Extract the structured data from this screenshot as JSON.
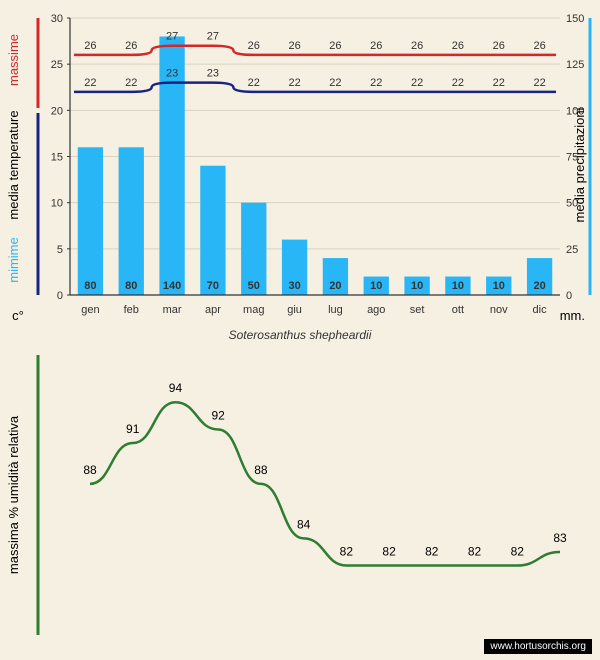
{
  "subtitle": "Soterosanthus shepheardii",
  "footer": "www.hortusorchis.org",
  "months": [
    "gen",
    "feb",
    "mar",
    "apr",
    "mag",
    "giu",
    "lug",
    "ago",
    "set",
    "ott",
    "nov",
    "dic"
  ],
  "top_chart": {
    "type": "combo-bar-line",
    "background": "#f5f0e1",
    "plot_border": "#333333",
    "left_axis": {
      "label": "media temperature",
      "unit": "c°",
      "min": 0,
      "max": 30,
      "step": 5,
      "color": "#1a237e",
      "label_color": "#000000"
    },
    "right_axis": {
      "label": "media precipitazioni",
      "unit": "mm.",
      "min": 0,
      "max": 150,
      "step": 25,
      "color": "#29b6f6",
      "label_color": "#000000"
    },
    "legend_labels": {
      "max": "massime",
      "min": "mimime"
    },
    "grid_color": "#d8d2c0",
    "bar": {
      "color": "#29b6f6",
      "values": [
        80,
        80,
        140,
        70,
        50,
        30,
        20,
        10,
        10,
        10,
        10,
        20
      ],
      "width": 0.62
    },
    "line_max": {
      "color": "#d62728",
      "width": 2.5,
      "values": [
        26,
        26,
        27,
        27,
        26,
        26,
        26,
        26,
        26,
        26,
        26,
        26
      ]
    },
    "line_min": {
      "color": "#1a237e",
      "width": 2.5,
      "values": [
        22,
        22,
        23,
        23,
        22,
        22,
        22,
        22,
        22,
        22,
        22,
        22
      ]
    },
    "label_fontsize": 11
  },
  "bottom_chart": {
    "type": "line",
    "background": "#f5f0e1",
    "axis_label": "massima % umidità relativa",
    "axis_color": "#2e7d32",
    "line": {
      "color": "#2e7d32",
      "width": 2.5,
      "values": [
        88,
        91,
        94,
        92,
        88,
        84,
        82,
        82,
        82,
        82,
        82,
        83
      ]
    },
    "ymin": 78,
    "ymax": 96,
    "label_fontsize": 12
  },
  "colors": {
    "bg": "#f5f0e1",
    "red": "#d62728",
    "navy": "#1a237e",
    "sky": "#29b6f6",
    "green": "#2e7d32",
    "black": "#000000"
  }
}
